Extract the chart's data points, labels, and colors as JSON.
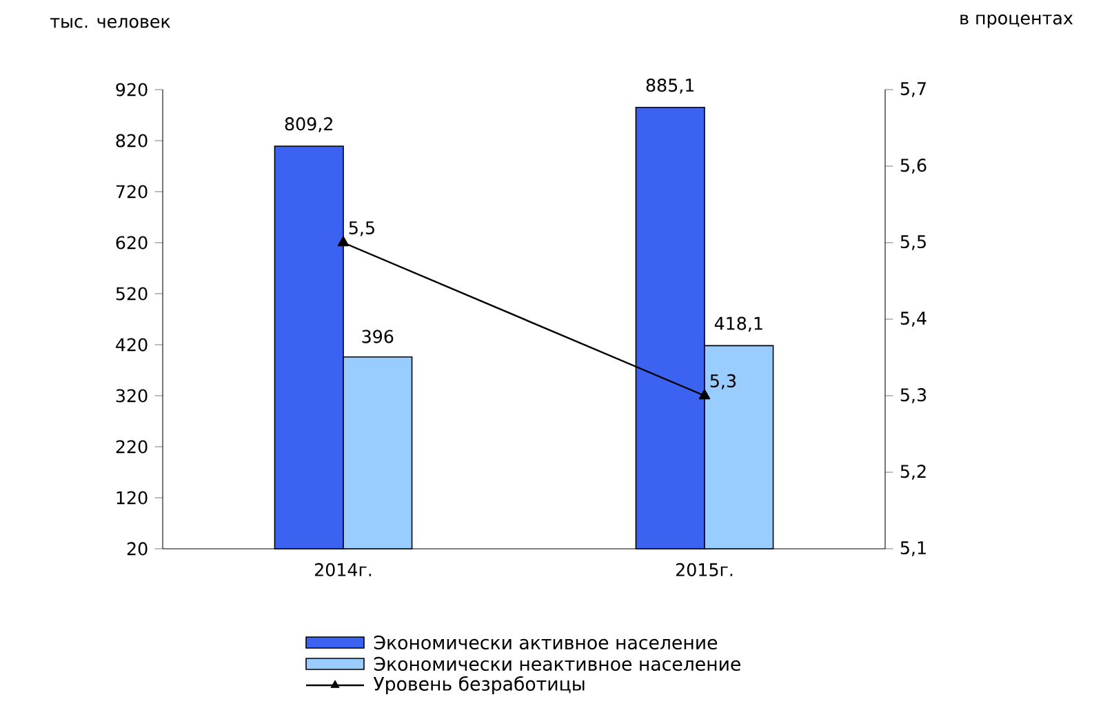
{
  "chart_data": {
    "type": "bar",
    "ylabel": "тыс. человек",
    "y2label": "в процентах",
    "categories": [
      "2014г.",
      "2015г."
    ],
    "series": [
      {
        "name": "Экономически активное население",
        "color": "#3b62f0",
        "values": [
          809.2,
          885.1
        ],
        "value_labels": [
          "809,2",
          "885,1"
        ]
      },
      {
        "name": "Экономически неактивное население",
        "color": "#99ccff",
        "values": [
          396,
          418.1
        ],
        "value_labels": [
          "396",
          "418,1"
        ]
      },
      {
        "name": "Уровень безработицы",
        "type": "line",
        "axis": "y2",
        "color": "#000000",
        "marker": "triangle",
        "line_style": "solid",
        "values": [
          5.5,
          5.3
        ],
        "value_labels": [
          "5,5",
          "5,3"
        ]
      }
    ],
    "ylim": [
      20,
      920
    ],
    "yticks": [
      20,
      120,
      220,
      320,
      420,
      520,
      620,
      720,
      820,
      920
    ],
    "y2lim": [
      5.1,
      5.7
    ],
    "y2ticks": [
      {
        "value": 5.1,
        "label": "5,1"
      },
      {
        "value": 5.2,
        "label": "5,2"
      },
      {
        "value": 5.3,
        "label": "5,3"
      },
      {
        "value": 5.4,
        "label": "5,4"
      },
      {
        "value": 5.5,
        "label": "5,5"
      },
      {
        "value": 5.6,
        "label": "5,6"
      },
      {
        "value": 5.7,
        "label": "5,7"
      }
    ],
    "legend": "bottom",
    "grid": false
  }
}
